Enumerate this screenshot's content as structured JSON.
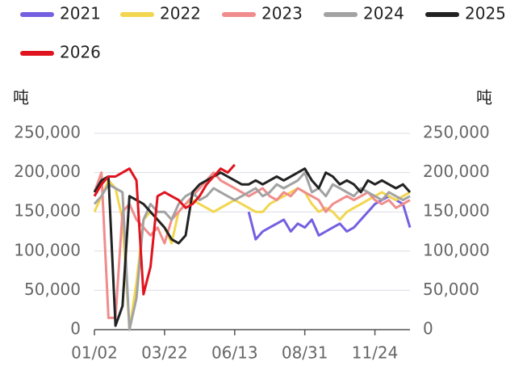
{
  "chart_data": {
    "type": "line",
    "y_label": "吨",
    "y2_label": "吨",
    "categories": [
      "01/02",
      null,
      null,
      null,
      null,
      null,
      null,
      null,
      null,
      null,
      "03/22",
      null,
      null,
      null,
      null,
      null,
      null,
      null,
      null,
      null,
      "06/13",
      null,
      null,
      null,
      null,
      null,
      null,
      null,
      null,
      null,
      "08/31",
      null,
      null,
      null,
      null,
      null,
      null,
      null,
      null,
      null,
      "11/24",
      null,
      null,
      null,
      null,
      null
    ],
    "ylim": [
      0,
      250000
    ],
    "yticks": [
      0,
      {
        "value": 50000,
        "label": "50,000"
      },
      {
        "value": 100000,
        "label": "100,000"
      },
      {
        "value": 150000,
        "label": "150,000"
      },
      {
        "value": 200000,
        "label": "200,000"
      },
      {
        "value": 250000,
        "label": "250,000"
      }
    ],
    "y2lim": [
      0,
      250000
    ],
    "y2ticks": [
      0,
      {
        "value": 50000,
        "label": "50,000"
      },
      {
        "value": 100000,
        "label": "100,000"
      },
      {
        "value": 150000,
        "label": "150,000"
      },
      {
        "value": 200000,
        "label": "200,000"
      },
      {
        "value": 250000,
        "label": "250,000"
      }
    ],
    "grid": true,
    "legend": "top",
    "series": [
      {
        "name": "2021",
        "color": "#7460e0",
        "values": [
          null,
          null,
          null,
          null,
          null,
          null,
          null,
          null,
          null,
          null,
          null,
          null,
          null,
          null,
          null,
          null,
          null,
          null,
          null,
          null,
          null,
          null,
          150000,
          115000,
          125000,
          130000,
          135000,
          140000,
          125000,
          135000,
          130000,
          140000,
          120000,
          125000,
          130000,
          135000,
          125000,
          130000,
          140000,
          150000,
          160000,
          165000,
          170000,
          165000,
          160000,
          130000
        ]
      },
      {
        "name": "2022",
        "color": "#f2d650",
        "values": [
          150000,
          170000,
          190000,
          180000,
          140000,
          0,
          60000,
          140000,
          150000,
          140000,
          130000,
          110000,
          150000,
          160000,
          165000,
          160000,
          155000,
          150000,
          155000,
          160000,
          165000,
          160000,
          155000,
          150000,
          150000,
          160000,
          165000,
          170000,
          175000,
          180000,
          175000,
          160000,
          150000,
          155000,
          150000,
          140000,
          150000,
          155000,
          160000,
          165000,
          170000,
          175000,
          170000,
          165000,
          170000,
          175000
        ]
      },
      {
        "name": "2023",
        "color": "#f08c8c",
        "values": [
          175000,
          200000,
          15000,
          15000,
          150000,
          160000,
          140000,
          130000,
          120000,
          130000,
          110000,
          140000,
          150000,
          160000,
          170000,
          180000,
          190000,
          200000,
          190000,
          185000,
          180000,
          175000,
          170000,
          175000,
          180000,
          170000,
          165000,
          175000,
          170000,
          180000,
          175000,
          170000,
          165000,
          150000,
          160000,
          165000,
          170000,
          165000,
          170000,
          175000,
          165000,
          160000,
          165000,
          155000,
          160000,
          165000
        ]
      },
      {
        "name": "2024",
        "color": "#a2a2a2",
        "values": [
          160000,
          170000,
          185000,
          180000,
          175000,
          0,
          40000,
          140000,
          160000,
          150000,
          150000,
          140000,
          160000,
          170000,
          175000,
          165000,
          170000,
          180000,
          175000,
          170000,
          165000,
          170000,
          175000,
          180000,
          170000,
          175000,
          185000,
          180000,
          185000,
          190000,
          200000,
          175000,
          180000,
          170000,
          185000,
          180000,
          175000,
          170000,
          180000,
          175000,
          170000,
          165000,
          175000,
          170000,
          165000,
          170000
        ]
      },
      {
        "name": "2025",
        "color": "#222222",
        "values": [
          175000,
          190000,
          195000,
          5000,
          30000,
          170000,
          165000,
          160000,
          150000,
          140000,
          130000,
          115000,
          110000,
          120000,
          175000,
          185000,
          190000,
          195000,
          200000,
          195000,
          190000,
          185000,
          185000,
          190000,
          185000,
          190000,
          195000,
          190000,
          195000,
          200000,
          205000,
          190000,
          180000,
          200000,
          195000,
          185000,
          190000,
          185000,
          175000,
          190000,
          185000,
          190000,
          185000,
          180000,
          185000,
          175000
        ]
      },
      {
        "name": "2026",
        "color": "#e0141e",
        "values": [
          170000,
          185000,
          195000,
          195000,
          200000,
          205000,
          190000,
          45000,
          80000,
          170000,
          175000,
          170000,
          165000,
          155000,
          160000,
          170000,
          185000,
          195000,
          205000,
          200000,
          210000,
          null,
          null,
          null,
          null,
          null,
          null,
          null,
          null,
          null,
          null,
          null,
          null,
          null,
          null,
          null,
          null,
          null,
          null,
          null,
          null,
          null,
          null,
          null,
          null,
          null
        ]
      }
    ]
  }
}
